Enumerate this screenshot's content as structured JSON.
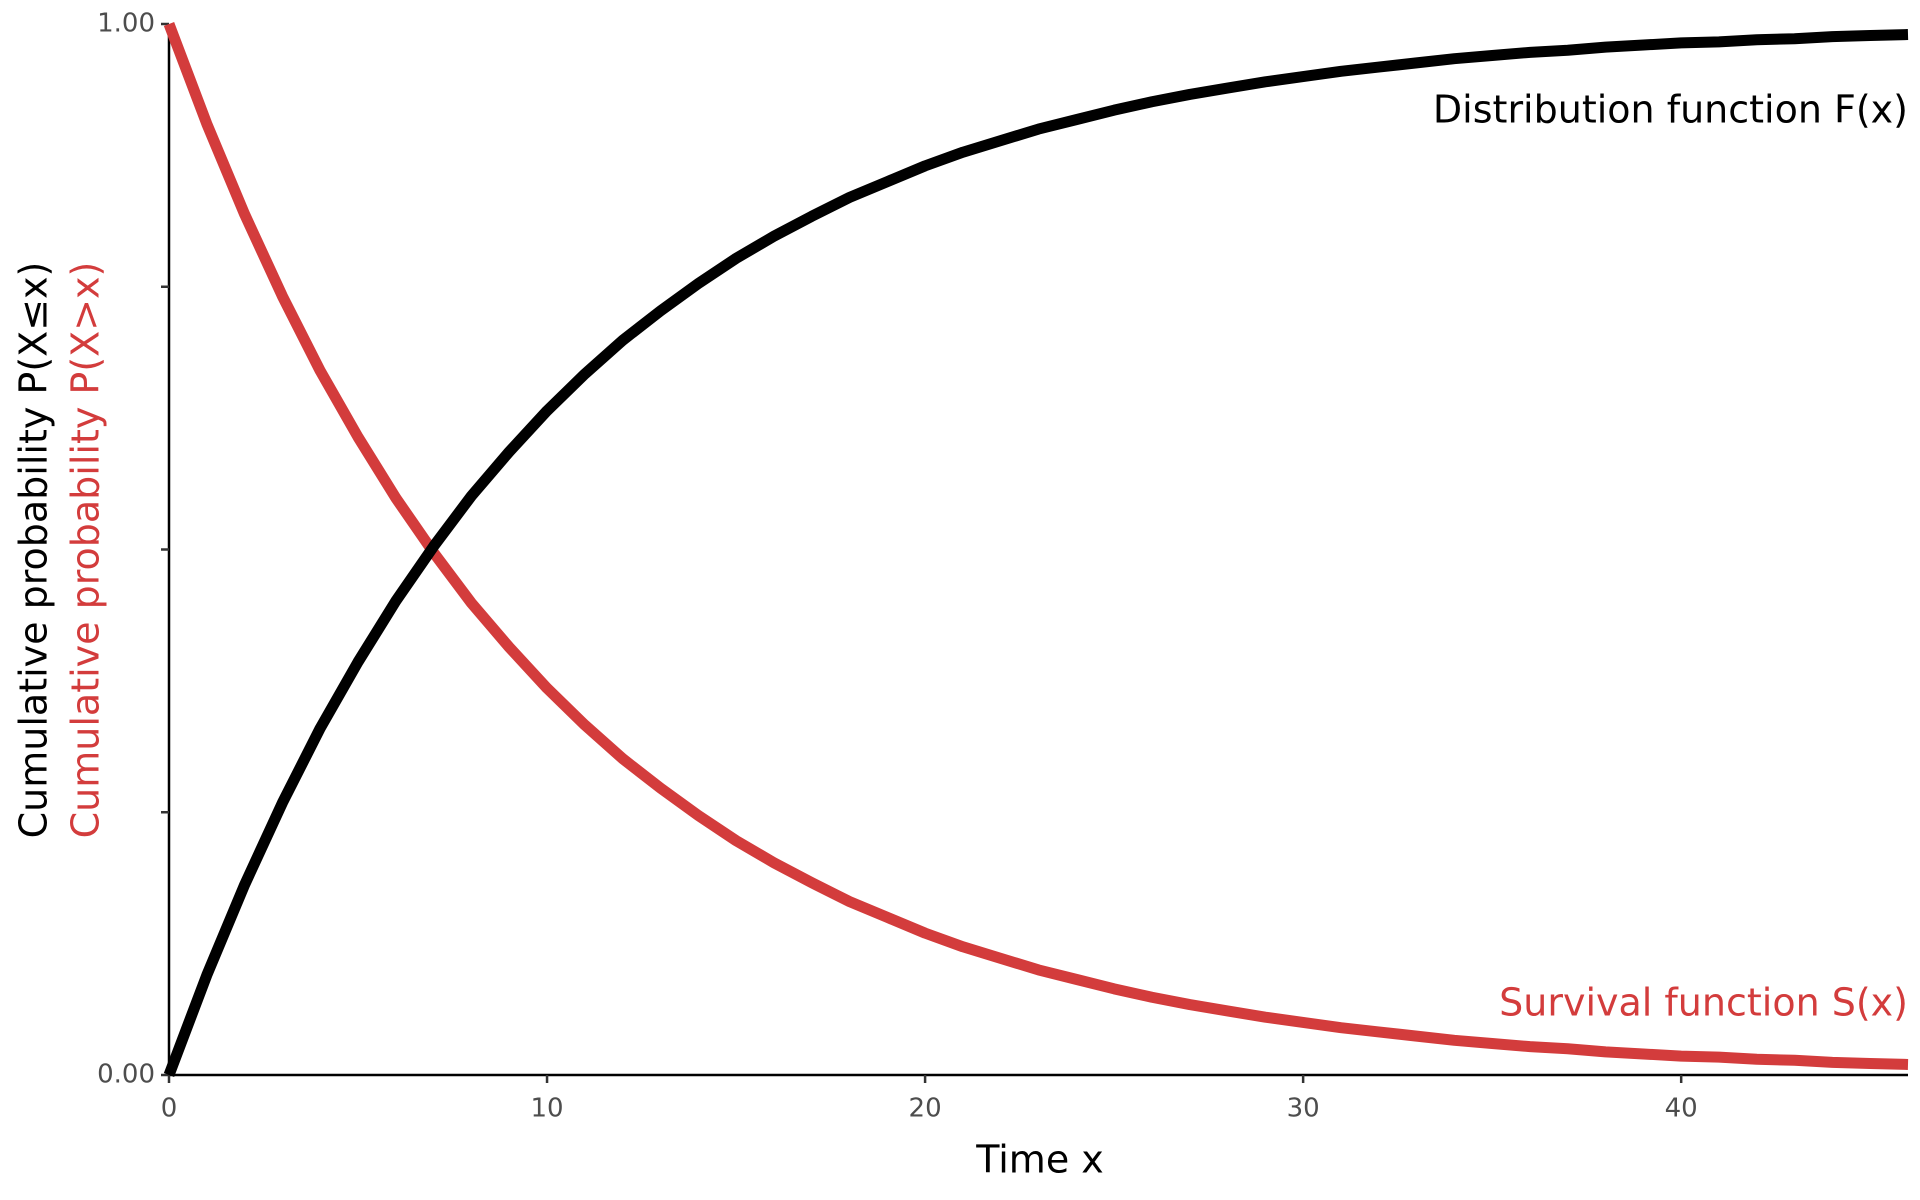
{
  "chart_data": {
    "type": "line",
    "x_label": "Time x",
    "y_label": "Cumulative probability P(X≤x)",
    "y_label_2": "Cumulative probability P(X>x)",
    "x": [
      0,
      1,
      2,
      3,
      4,
      5,
      6,
      7,
      8,
      9,
      10,
      11,
      12,
      13,
      14,
      15,
      16,
      17,
      18,
      19,
      20,
      21,
      22,
      23,
      24,
      25,
      26,
      27,
      28,
      29,
      30,
      31,
      32,
      33,
      34,
      35,
      36,
      37,
      38,
      39,
      40,
      41,
      42,
      43,
      44,
      45,
      46
    ],
    "series": [
      {
        "name": "Distribution function F(x)",
        "color": "#000000",
        "values": [
          0,
          0.095,
          0.181,
          0.259,
          0.33,
          0.393,
          0.451,
          0.503,
          0.551,
          0.593,
          0.632,
          0.667,
          0.699,
          0.727,
          0.753,
          0.777,
          0.798,
          0.817,
          0.835,
          0.85,
          0.865,
          0.878,
          0.889,
          0.9,
          0.909,
          0.918,
          0.926,
          0.933,
          0.939,
          0.945,
          0.95,
          0.955,
          0.959,
          0.963,
          0.967,
          0.97,
          0.973,
          0.975,
          0.978,
          0.98,
          0.982,
          0.983,
          0.985,
          0.986,
          0.988,
          0.989,
          0.99
        ]
      },
      {
        "name": "Survival function S(x)",
        "color": "#d33c3c",
        "values": [
          1,
          0.905,
          0.819,
          0.741,
          0.67,
          0.607,
          0.549,
          0.497,
          0.449,
          0.407,
          0.368,
          0.333,
          0.301,
          0.273,
          0.247,
          0.223,
          0.202,
          0.183,
          0.165,
          0.15,
          0.135,
          0.122,
          0.111,
          0.1,
          0.091,
          0.082,
          0.074,
          0.067,
          0.061,
          0.055,
          0.05,
          0.045,
          0.041,
          0.037,
          0.033,
          0.03,
          0.027,
          0.025,
          0.022,
          0.02,
          0.018,
          0.017,
          0.015,
          0.014,
          0.012,
          0.011,
          0.01
        ]
      }
    ],
    "xlim": [
      0,
      46
    ],
    "ylim": [
      0,
      1
    ],
    "xticks": [
      0,
      10,
      20,
      30,
      40
    ],
    "yticks": [
      {
        "value": 0,
        "label": "0.00"
      },
      {
        "value": 0.25,
        "label": null
      },
      {
        "value": 0.5,
        "label": null
      },
      {
        "value": 0.75,
        "label": null
      },
      {
        "value": 1,
        "label": "1.00"
      }
    ],
    "grid": false
  }
}
